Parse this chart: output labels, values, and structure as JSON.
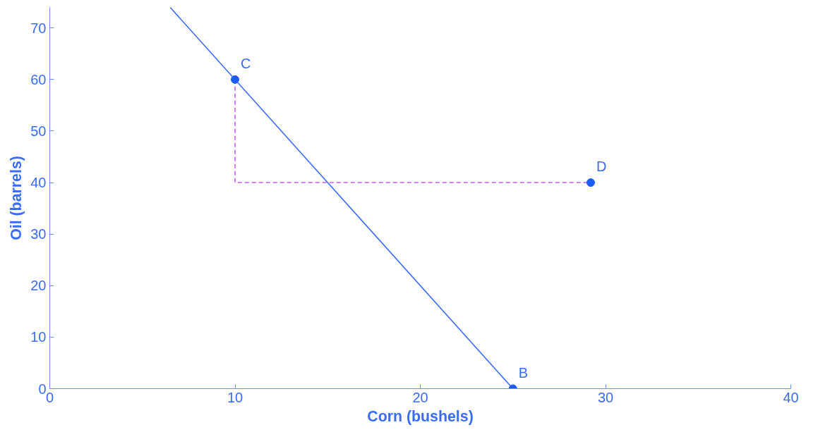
{
  "chart_data": {
    "type": "line",
    "xlabel": "Corn (bushels)",
    "ylabel": "Oil (barrels)",
    "xlim": [
      0,
      40
    ],
    "ylim": [
      0,
      74
    ],
    "xticks": [
      0,
      10,
      20,
      30,
      40
    ],
    "yticks": [
      0,
      10,
      20,
      30,
      40,
      50,
      60,
      70
    ],
    "grid": false,
    "series": [
      {
        "color": "#3a6cf4",
        "x": [
          6.5,
          25
        ],
        "values": [
          74,
          0
        ],
        "line_style": "solid",
        "marker": "none"
      },
      {
        "color": "#c45cf2",
        "x": [
          10,
          10,
          29.2
        ],
        "values": [
          60,
          40,
          40
        ],
        "line_style": "dashed",
        "marker": "none"
      },
      {
        "type": "scatter",
        "color": "#1f5cf5",
        "x": [
          10,
          25,
          29.2
        ],
        "values": [
          60,
          0,
          40
        ],
        "marker": "circle"
      }
    ],
    "annotations": [
      {
        "text": "C",
        "x": 10,
        "y": 60
      },
      {
        "text": "B",
        "x": 25,
        "y": 0
      },
      {
        "text": "D",
        "x": 29.2,
        "y": 40
      }
    ]
  }
}
